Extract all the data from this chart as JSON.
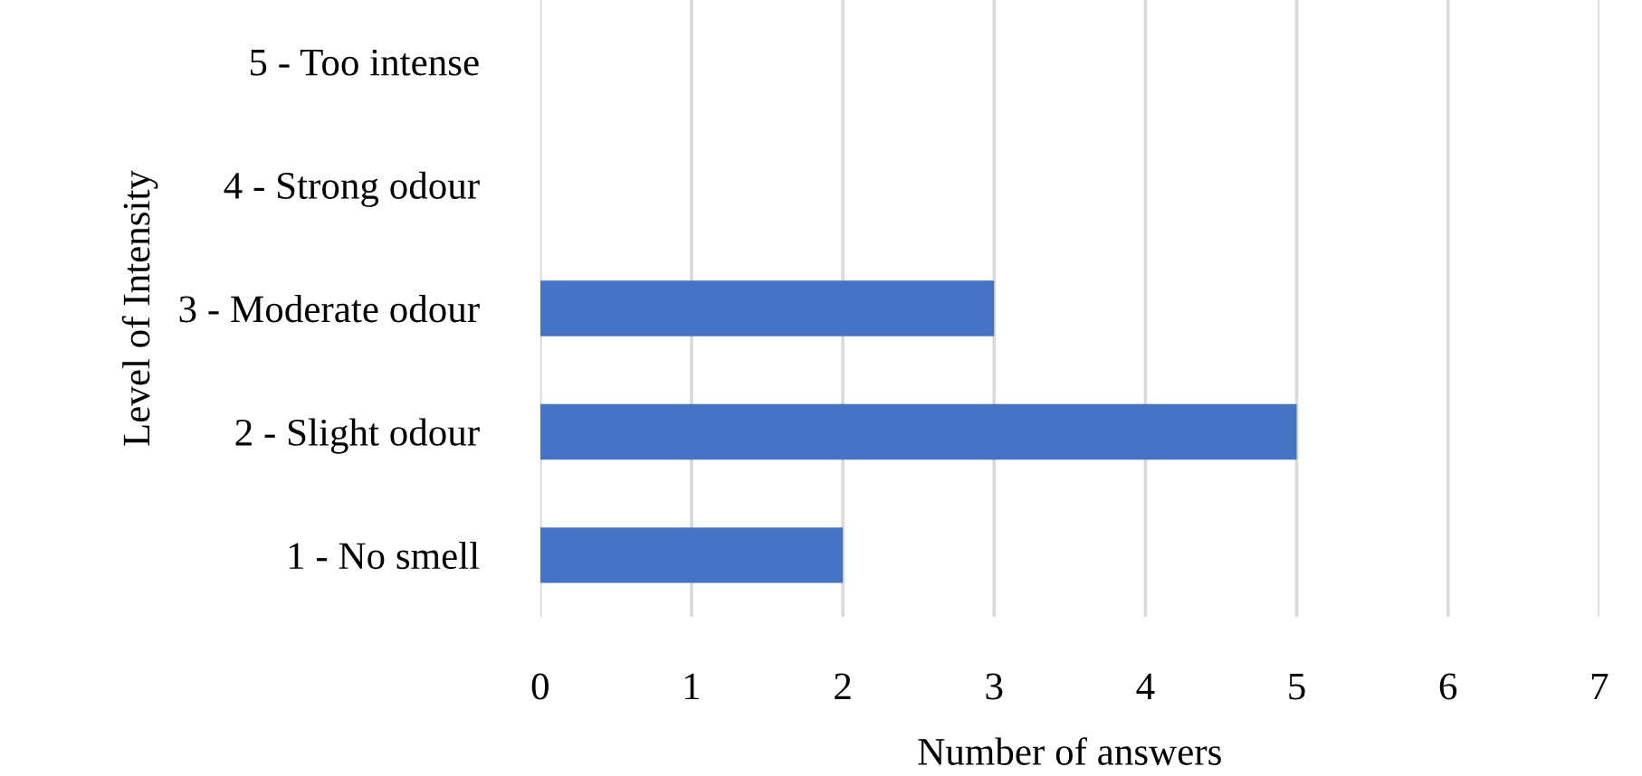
{
  "chart_data": {
    "type": "bar",
    "orientation": "horizontal",
    "xlabel": "Number of answers",
    "ylabel": "Level of Intensity",
    "categories": [
      "5 - Too intense",
      "4 - Strong odour",
      "3 - Moderate odour",
      "2 - Slight odour",
      "1 - No smell"
    ],
    "values": [
      0,
      0,
      3,
      5,
      2
    ],
    "color": "#4472c4",
    "xlim": [
      0,
      7
    ],
    "xticks": [
      0,
      1,
      2,
      3,
      4,
      5,
      6,
      7
    ],
    "grid": "x",
    "legend": false
  }
}
